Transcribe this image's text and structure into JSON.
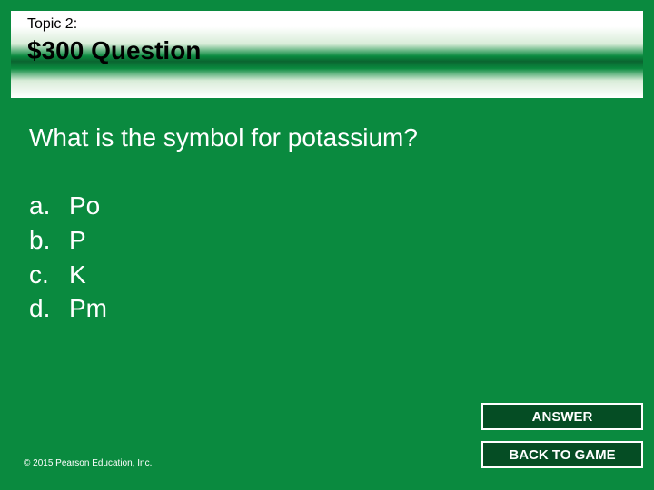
{
  "header": {
    "topic_label": "Topic 2:",
    "price_title": "$300 Question"
  },
  "question": "What is the symbol for potassium?",
  "options": [
    {
      "letter": "a.",
      "text": "Po"
    },
    {
      "letter": "b.",
      "text": "P"
    },
    {
      "letter": "c.",
      "text": "K"
    },
    {
      "letter": "d.",
      "text": "Pm"
    }
  ],
  "buttons": {
    "answer": "ANSWER",
    "back": "BACK TO GAME"
  },
  "copyright": "© 2015 Pearson Education, Inc.",
  "colors": {
    "background": "#0a8a3f",
    "button_bg": "#054d24",
    "button_border": "#ffffff",
    "text_light": "#ffffff",
    "text_dark": "#000000"
  },
  "typography": {
    "topic_fontsize": 16,
    "title_fontsize": 28,
    "question_fontsize": 28,
    "option_fontsize": 28,
    "button_fontsize": 15,
    "copyright_fontsize": 10,
    "font_family": "Arial"
  },
  "layout": {
    "slide_width": 720,
    "slide_height": 540
  }
}
